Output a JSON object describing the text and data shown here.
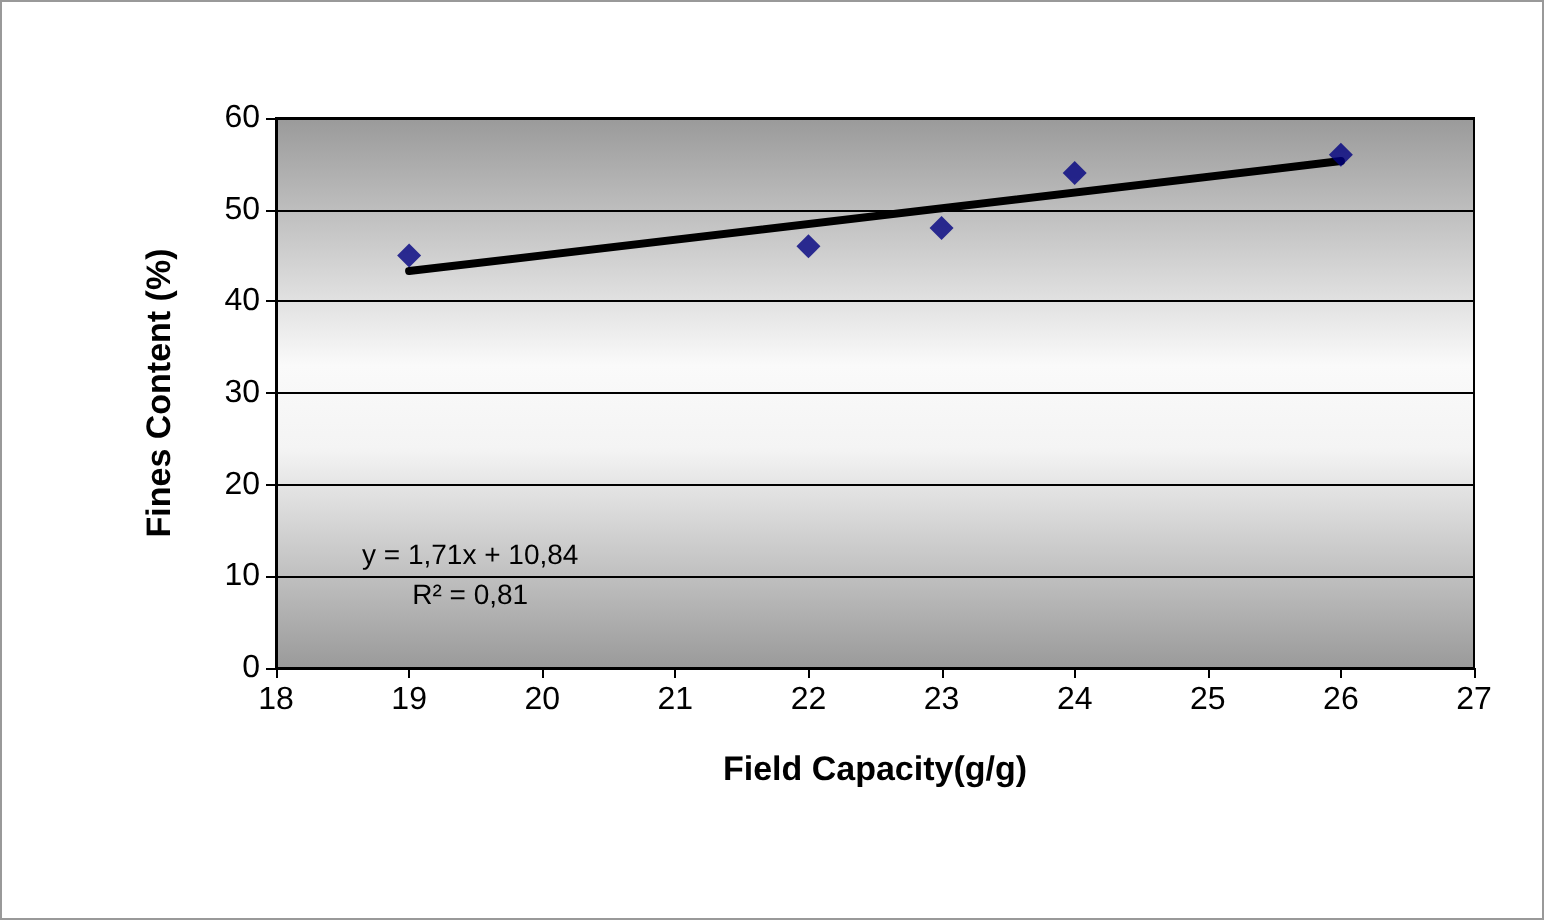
{
  "chart_data": {
    "type": "scatter",
    "xlabel": "Field Capacity(g/g)",
    "ylabel": "Fines Content (%)",
    "series": [
      {
        "color": "#000080",
        "marker": "diamond",
        "x": [
          19,
          22,
          23,
          24,
          26
        ],
        "values": [
          45,
          46,
          48,
          54,
          56
        ]
      },
      {
        "type": "line",
        "color": "#000000",
        "marker": "none",
        "x": [
          19,
          26
        ],
        "values": [
          43.3,
          55.3
        ]
      }
    ],
    "annotations": [
      "y = 1,71x + 10,84\nR² = 0,81"
    ],
    "xlim": [
      18,
      27
    ],
    "xticks": [
      18,
      19,
      20,
      21,
      22,
      23,
      24,
      25,
      26,
      27
    ],
    "ylim": [
      0,
      60
    ],
    "yticks": [
      0,
      10,
      20,
      30,
      40,
      50,
      60
    ],
    "grid": "y"
  }
}
